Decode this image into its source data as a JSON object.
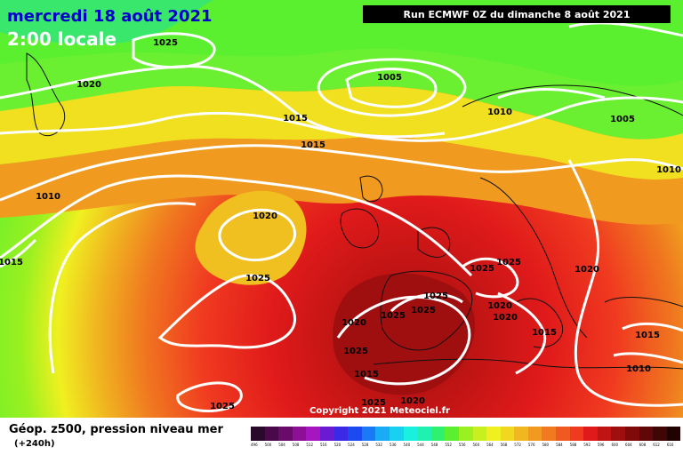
{
  "header": {
    "date": "mercredi 18 août 2021",
    "time": "2:00 locale",
    "run": "Run ECMWF 0Z du dimanche 8 août 2021"
  },
  "copyright": "Copyright 2021 Meteociel.fr",
  "footer": {
    "title": "Géop. z500, pression niveau mer",
    "step": "(+240h)"
  },
  "legend": [
    {
      "label": "496",
      "color": "#2a0a2a"
    },
    {
      "label": "500",
      "color": "#4a0a4a"
    },
    {
      "label": "504",
      "color": "#6a0a6a"
    },
    {
      "label": "508",
      "color": "#8c0f96"
    },
    {
      "label": "512",
      "color": "#a516c0"
    },
    {
      "label": "516",
      "color": "#6a1ad0"
    },
    {
      "label": "520",
      "color": "#3a2ae6"
    },
    {
      "label": "524",
      "color": "#1a4af0"
    },
    {
      "label": "528",
      "color": "#1a7af6"
    },
    {
      "label": "532",
      "color": "#1aaaf6"
    },
    {
      "label": "536",
      "color": "#1ad0f0"
    },
    {
      "label": "540",
      "color": "#1af0e0"
    },
    {
      "label": "544",
      "color": "#20f0b0"
    },
    {
      "label": "548",
      "color": "#30f070"
    },
    {
      "label": "552",
      "color": "#5af030"
    },
    {
      "label": "556",
      "color": "#9af020"
    },
    {
      "label": "560",
      "color": "#c8f020"
    },
    {
      "label": "564",
      "color": "#f0f020"
    },
    {
      "label": "568",
      "color": "#f0d820"
    },
    {
      "label": "572",
      "color": "#f0b820"
    },
    {
      "label": "576",
      "color": "#f09a20"
    },
    {
      "label": "580",
      "color": "#f07a20"
    },
    {
      "label": "584",
      "color": "#f05a20"
    },
    {
      "label": "588",
      "color": "#f03a20"
    },
    {
      "label": "592",
      "color": "#e01a1a"
    },
    {
      "label": "596",
      "color": "#c01414"
    },
    {
      "label": "600",
      "color": "#a00f0f"
    },
    {
      "label": "604",
      "color": "#800a0a"
    },
    {
      "label": "608",
      "color": "#600808"
    },
    {
      "label": "612",
      "color": "#400505"
    },
    {
      "label": "616",
      "color": "#200202"
    }
  ],
  "isobar_labels": [
    {
      "id": "a",
      "text": "1025"
    },
    {
      "id": "b",
      "text": "1020"
    },
    {
      "id": "c",
      "text": "1005"
    },
    {
      "id": "d",
      "text": "1015"
    },
    {
      "id": "e",
      "text": "1015"
    },
    {
      "id": "f",
      "text": "1010"
    },
    {
      "id": "g",
      "text": "1005"
    },
    {
      "id": "h",
      "text": "1010"
    },
    {
      "id": "i",
      "text": "1010"
    },
    {
      "id": "j",
      "text": "1020"
    },
    {
      "id": "k",
      "text": "1015"
    },
    {
      "id": "l",
      "text": "1025"
    },
    {
      "id": "m",
      "text": "1025"
    },
    {
      "id": "n",
      "text": "1025"
    },
    {
      "id": "o",
      "text": "1025"
    },
    {
      "id": "p",
      "text": "1025"
    },
    {
      "id": "q",
      "text": "1025"
    },
    {
      "id": "r",
      "text": "1020"
    },
    {
      "id": "s",
      "text": "1020"
    },
    {
      "id": "t",
      "text": "1020"
    },
    {
      "id": "u",
      "text": "1020"
    },
    {
      "id": "v",
      "text": "1015"
    },
    {
      "id": "w",
      "text": "1015"
    },
    {
      "id": "x",
      "text": "1010"
    },
    {
      "id": "y",
      "text": "1025"
    },
    {
      "id": "z",
      "text": "1015"
    },
    {
      "id": "aa",
      "text": "1025"
    },
    {
      "id": "ab",
      "text": "1020"
    },
    {
      "id": "ac",
      "text": "1025"
    }
  ]
}
